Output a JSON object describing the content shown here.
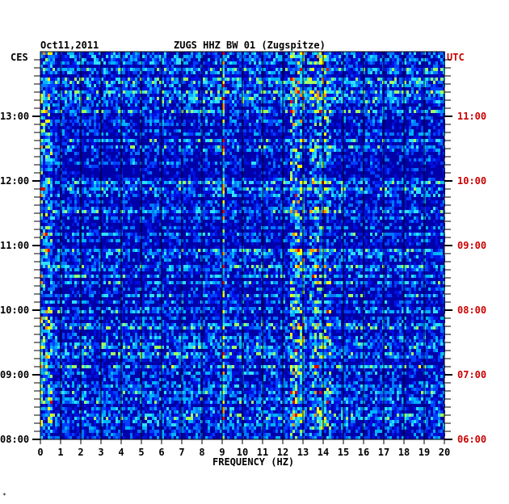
{
  "header": {
    "date": "Oct11,2011",
    "station": "ZUGS HHZ BW 01 (Zugspitze)"
  },
  "chart_data": {
    "type": "heatmap",
    "title": "ZUGS HHZ BW 01 (Zugspitze)",
    "date": "Oct11,2011",
    "xlabel": "FREQUENCY (HZ)",
    "xlim": [
      0,
      20
    ],
    "x_ticks": [
      "0",
      "1",
      "2",
      "3",
      "4",
      "5",
      "6",
      "7",
      "8",
      "9",
      "10",
      "11",
      "12",
      "13",
      "14",
      "15",
      "16",
      "17",
      "18",
      "19",
      "20"
    ],
    "left_axis_label": "CES",
    "right_axis_label": "UTC",
    "left_ticks": [
      "08:00",
      "09:00",
      "10:00",
      "11:00",
      "12:00",
      "13:00"
    ],
    "right_ticks": [
      "06:00",
      "07:00",
      "08:00",
      "09:00",
      "10:00",
      "11:00"
    ],
    "colors": {
      "background": "#0000a8",
      "grid": "#000000",
      "utc_label": "#cc0000"
    }
  },
  "footnote": "*"
}
